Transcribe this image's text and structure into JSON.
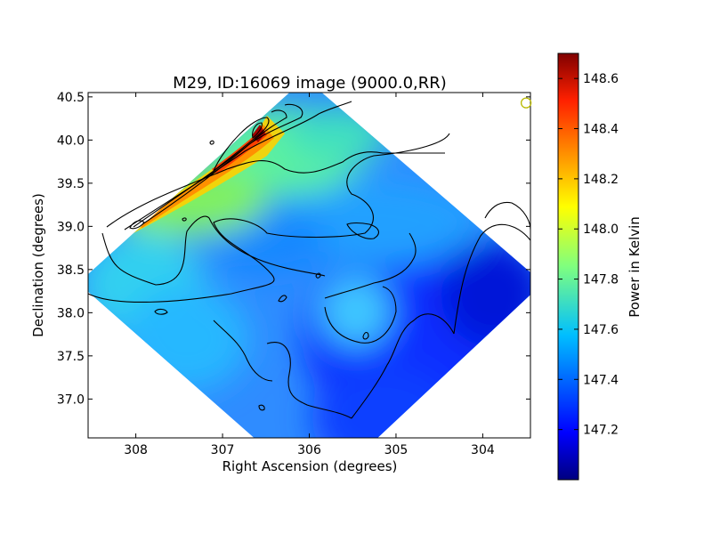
{
  "chart_data": {
    "type": "heatmap",
    "title": "M29, ID:16069 image (9000.0,RR)",
    "xlabel": "Right Ascension (degrees)",
    "ylabel": "Declination (degrees)",
    "xlim": [
      308.55,
      303.45
    ],
    "ylim": [
      36.55,
      40.55
    ],
    "x_ticks": [
      308,
      307,
      306,
      305,
      304
    ],
    "y_ticks": [
      37.0,
      37.5,
      38.0,
      38.5,
      39.0,
      39.5,
      40.0,
      40.5
    ],
    "x_tick_labels": [
      "308",
      "307",
      "306",
      "305",
      "304"
    ],
    "y_tick_labels": [
      "37.0",
      "37.5",
      "38.0",
      "38.5",
      "39.0",
      "39.5",
      "40.0",
      "40.5"
    ],
    "colorbar": {
      "label": "Power in Kelvin",
      "range": [
        147.0,
        148.7
      ],
      "ticks": [
        147.2,
        147.4,
        147.6,
        147.8,
        148.0,
        148.2,
        148.4,
        148.6
      ],
      "tick_labels": [
        "147.2",
        "147.4",
        "147.6",
        "147.8",
        "148.0",
        "148.2",
        "148.4",
        "148.6"
      ],
      "colormap": "jet"
    },
    "features": {
      "peak": {
        "ra": 306.55,
        "dec": 40.05,
        "value": 148.65
      },
      "minimum_region": {
        "ra": 303.9,
        "dec": 38.2,
        "value": 147.05
      },
      "beam_marker": {
        "ra": 303.5,
        "dec": 40.43
      }
    }
  }
}
